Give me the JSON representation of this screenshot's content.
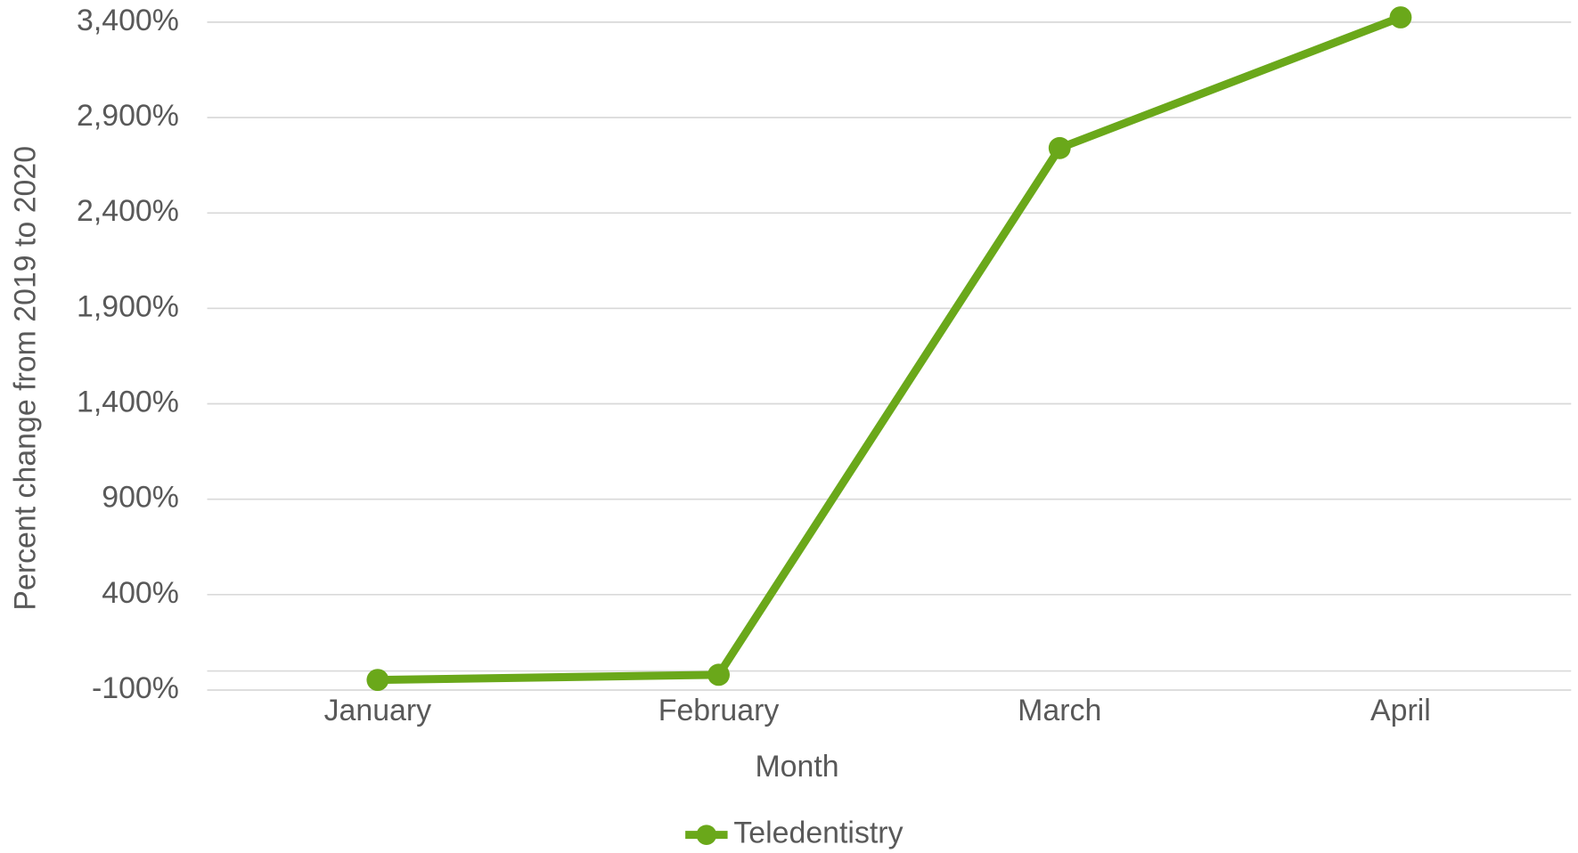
{
  "chart_data": {
    "type": "line",
    "x_label": "Month",
    "y_label": "Percent change from 2019 to 2020",
    "categories": [
      "January",
      "February",
      "March",
      "April"
    ],
    "series": [
      {
        "name": "Teledentistry",
        "color": "#6aa81a",
        "values": [
          -47,
          -20,
          2740,
          3425
        ]
      }
    ],
    "ylim": [
      -100,
      3400
    ],
    "yticks": [
      {
        "value": -100,
        "label": "-100%"
      },
      {
        "value": 400,
        "label": "400%"
      },
      {
        "value": 900,
        "label": "900%"
      },
      {
        "value": 1400,
        "label": "1,400%"
      },
      {
        "value": 1900,
        "label": "1,900%"
      },
      {
        "value": 2400,
        "label": "2,400%"
      },
      {
        "value": 2900,
        "label": "2,900%"
      },
      {
        "value": 3400,
        "label": "3,400%"
      }
    ],
    "grid": true,
    "legend": "bottom"
  }
}
